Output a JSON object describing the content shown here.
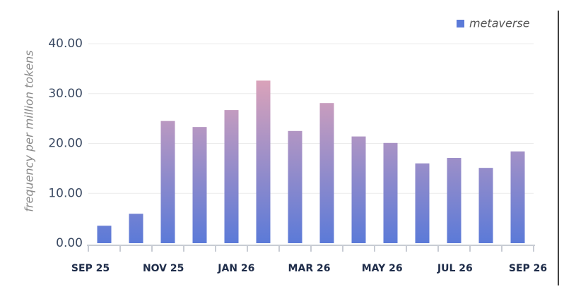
{
  "chart_data": {
    "type": "bar",
    "y_label": "frequency per million tokens",
    "categories": [
      null,
      null,
      null,
      null,
      null,
      null,
      null,
      null,
      null,
      null,
      null,
      null,
      null,
      null
    ],
    "x_labels": [
      "SEP 25",
      "NOV 25",
      "JAN 26",
      "MAR 26",
      "MAY 26",
      "JUL 26",
      "SEP 26"
    ],
    "series": [
      {
        "name": "metaverse",
        "color": [
          "#5b7ad8",
          "#dca3b9"
        ],
        "values": [
          3.5,
          5.9,
          24.5,
          23.3,
          26.7,
          32.6,
          22.5,
          28.1,
          21.4,
          20.1,
          16.0,
          17.1,
          15.1,
          18.4
        ]
      }
    ],
    "ylim": [
      0,
      40
    ],
    "yticks": [
      {
        "value": 0,
        "label": "0.00"
      },
      {
        "value": 10,
        "label": "10.00"
      },
      {
        "value": 20,
        "label": "20.00"
      },
      {
        "value": 30,
        "label": "30.00"
      },
      {
        "value": 40,
        "label": "40.00"
      }
    ],
    "grid": true,
    "legend": "top-right"
  }
}
